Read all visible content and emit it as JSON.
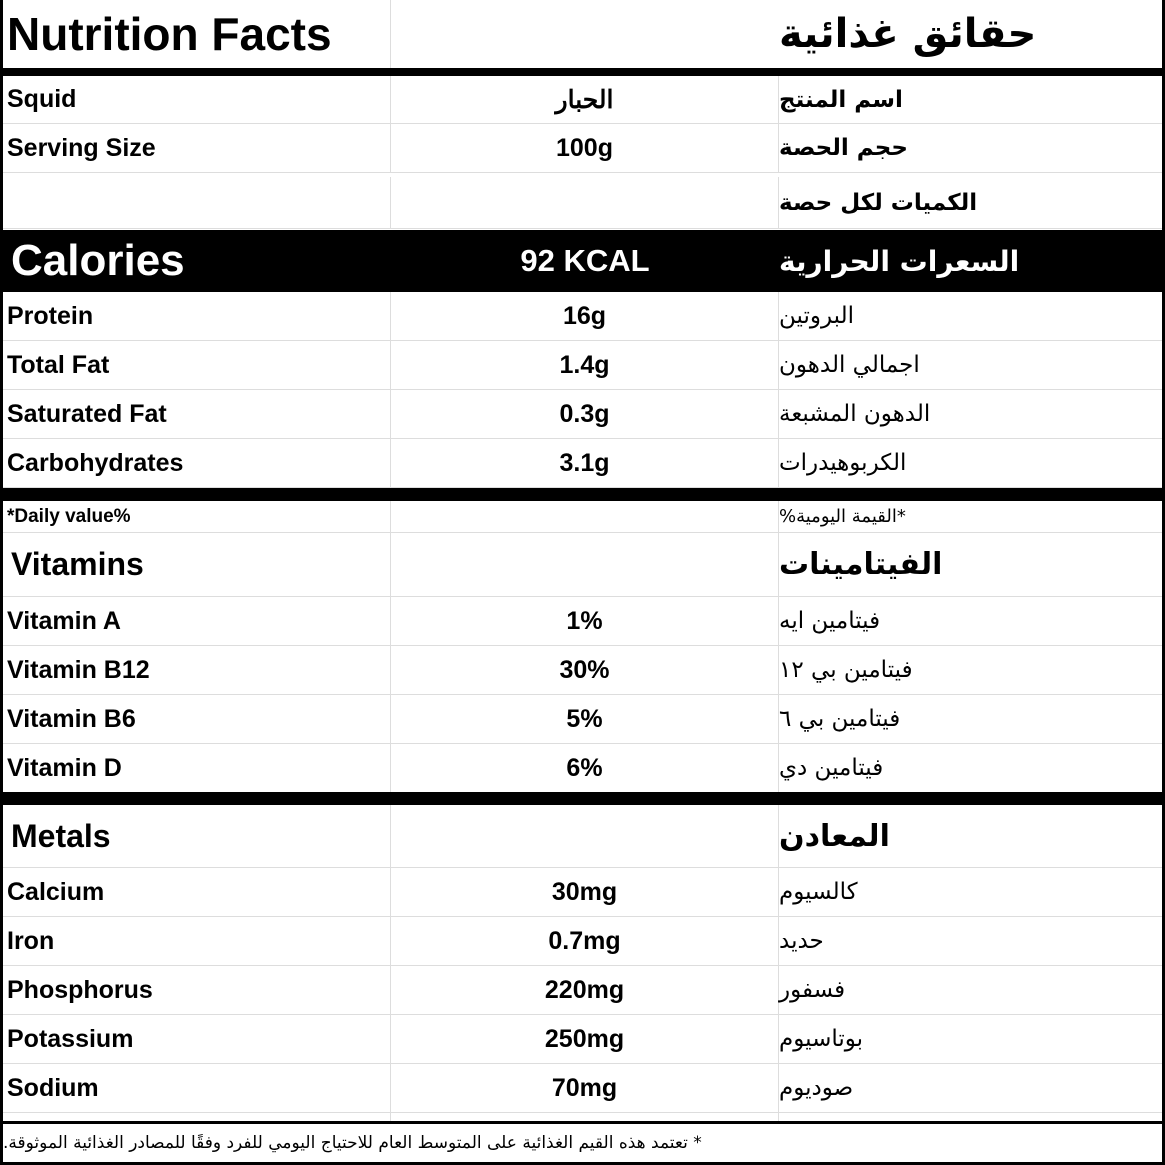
{
  "title": {
    "en": "Nutrition Facts",
    "ar": "حقائق غذائية"
  },
  "product": {
    "en": "Squid",
    "value": "الحبار",
    "ar": "اسم المنتج"
  },
  "serving": {
    "en": "Serving Size",
    "value": "100g",
    "ar": "حجم الحصة"
  },
  "per_serving": {
    "ar": "الكميات لكل حصة"
  },
  "calories": {
    "en": "Calories",
    "value": "92 KCAL",
    "ar": "السعرات الحرارية"
  },
  "macros": [
    {
      "en": "Protein",
      "value": "16g",
      "ar": "البروتين"
    },
    {
      "en": "Total Fat",
      "value": "1.4g",
      "ar": "اجمالي الدهون"
    },
    {
      "en": "Saturated Fat",
      "value": "0.3g",
      "ar": "الدهون المشبعة"
    },
    {
      "en": "Carbohydrates",
      "value": "3.1g",
      "ar": "الكربوهيدرات"
    }
  ],
  "daily_value": {
    "en": "*Daily value%",
    "ar": "*القيمة اليومية%"
  },
  "vitamins": {
    "en": "Vitamins",
    "ar": "الفيتامينات",
    "items": [
      {
        "en": "Vitamin A",
        "value": "1%",
        "ar": "فيتامين ايه"
      },
      {
        "en": "Vitamin B12",
        "value": "30%",
        "ar": "فيتامين بي ١٢"
      },
      {
        "en": "Vitamin B6",
        "value": "5%",
        "ar": "فيتامين بي ٦"
      },
      {
        "en": "Vitamin D",
        "value": "6%",
        "ar": "فيتامين دي"
      }
    ]
  },
  "metals": {
    "en": "Metals",
    "ar": "المعادن",
    "items": [
      {
        "en": "Calcium",
        "value": "30mg",
        "ar": "كالسيوم"
      },
      {
        "en": "Iron",
        "value": "0.7mg",
        "ar": "حديد"
      },
      {
        "en": "Phosphorus",
        "value": "220mg",
        "ar": "فسفور"
      },
      {
        "en": "Potassium",
        "value": "250mg",
        "ar": "بوتاسيوم"
      },
      {
        "en": "Sodium",
        "value": "70mg",
        "ar": "صوديوم"
      }
    ]
  },
  "footnote": "* تعتمد هذه القيم الغذائية على المتوسط العام للاحتياج اليومي للفرد وفقًا للمصادر الغذائية الموثوقة."
}
